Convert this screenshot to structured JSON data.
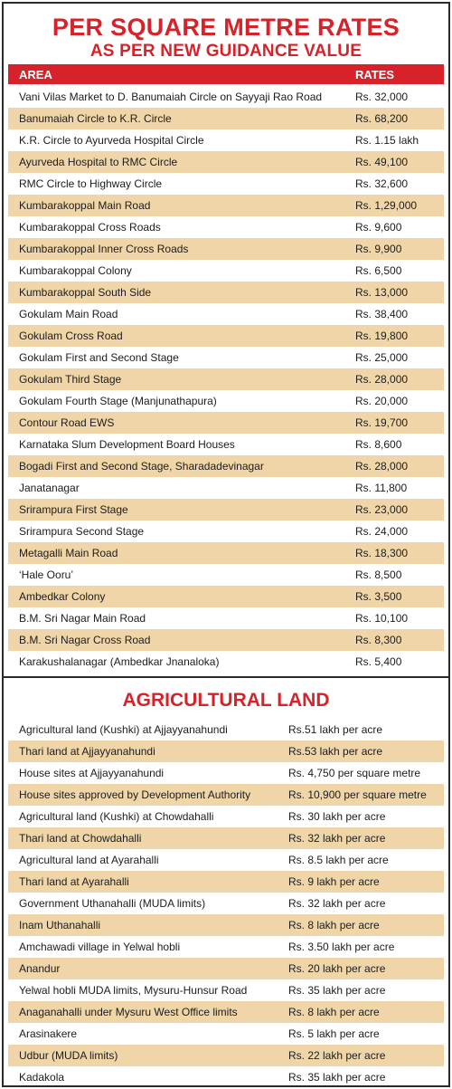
{
  "title": "PER SQUARE METRE RATES",
  "subtitle": "AS PER NEW GUIDANCE VALUE",
  "header": {
    "area": "AREA",
    "rates": "RATES"
  },
  "rates": [
    {
      "area": "Vani Vilas Market to D. Banumaiah Circle on Sayyaji Rao Road",
      "rate": "Rs. 32,000"
    },
    {
      "area": "Banumaiah Circle to K.R. Circle",
      "rate": "Rs. 68,200"
    },
    {
      "area": "K.R. Circle to Ayurveda Hospital Circle",
      "rate": "Rs. 1.15 lakh"
    },
    {
      "area": "Ayurveda Hospital to RMC Circle",
      "rate": "Rs. 49,100"
    },
    {
      "area": "RMC Circle to Highway Circle",
      "rate": "Rs. 32,600"
    },
    {
      "area": "Kumbarakoppal Main Road",
      "rate": "Rs. 1,29,000"
    },
    {
      "area": "Kumbarakoppal Cross Roads",
      "rate": "Rs. 9,600"
    },
    {
      "area": "Kumbarakoppal Inner Cross Roads",
      "rate": "Rs. 9,900"
    },
    {
      "area": "Kumbarakoppal Colony",
      "rate": "Rs. 6,500"
    },
    {
      "area": "Kumbarakoppal South Side",
      "rate": "Rs. 13,000"
    },
    {
      "area": "Gokulam Main Road",
      "rate": "Rs. 38,400"
    },
    {
      "area": "Gokulam Cross Road",
      "rate": "Rs. 19,800"
    },
    {
      "area": "Gokulam First and Second Stage",
      "rate": "Rs. 25,000"
    },
    {
      "area": "Gokulam Third Stage",
      "rate": "Rs. 28,000"
    },
    {
      "area": "Gokulam Fourth Stage (Manjunathapura)",
      "rate": "Rs. 20,000"
    },
    {
      "area": "Contour Road EWS",
      "rate": "Rs. 19,700"
    },
    {
      "area": "Karnataka Slum Development Board Houses",
      "rate": "Rs. 8,600"
    },
    {
      "area": "Bogadi First and Second Stage, Sharadadevinagar",
      "rate": "Rs. 28,000"
    },
    {
      "area": "Janatanagar",
      "rate": "Rs. 11,800"
    },
    {
      "area": "Srirampura First Stage",
      "rate": "Rs. 23,000"
    },
    {
      "area": "Srirampura Second Stage",
      "rate": "Rs. 24,000"
    },
    {
      "area": "Metagalli Main Road",
      "rate": "Rs. 18,300"
    },
    {
      "area": "‘Hale Ooru’",
      "rate": "Rs. 8,500"
    },
    {
      "area": "Ambedkar Colony",
      "rate": "Rs. 3,500"
    },
    {
      "area": "B.M. Sri Nagar Main Road",
      "rate": "Rs. 10,100"
    },
    {
      "area": "B.M. Sri Nagar Cross Road",
      "rate": "Rs. 8,300"
    },
    {
      "area": "Karakushalanagar (Ambedkar Jnanaloka)",
      "rate": "Rs. 5,400"
    }
  ],
  "agri_title": "AGRICULTURAL LAND",
  "agri": [
    {
      "area": "Agricultural land (Kushki) at Ajjayyanahundi",
      "rate": "Rs.51 lakh per acre"
    },
    {
      "area": "Thari land at Ajjayyanahundi",
      "rate": "Rs.53 lakh per acre"
    },
    {
      "area": "House sites at Ajjayyanahundi",
      "rate": "Rs. 4,750 per square metre"
    },
    {
      "area": "House sites approved by Development Authority",
      "rate": "Rs. 10,900 per square metre"
    },
    {
      "area": "Agricultural land (Kushki) at Chowdahalli",
      "rate": "Rs. 30 lakh per acre"
    },
    {
      "area": "Thari land at Chowdahalli",
      "rate": "Rs. 32 lakh per acre"
    },
    {
      "area": "Agricultural land at Ayarahalli",
      "rate": "Rs. 8.5 lakh per acre"
    },
    {
      "area": "Thari land at Ayarahalli",
      "rate": "Rs. 9 lakh per acre"
    },
    {
      "area": "Government Uthanahalli (MUDA limits)",
      "rate": "Rs. 32 lakh per acre"
    },
    {
      "area": "Inam Uthanahalli",
      "rate": "Rs. 8 lakh per acre"
    },
    {
      "area": "Amchawadi village in Yelwal hobli",
      "rate": "Rs. 3.50 lakh per acre"
    },
    {
      "area": "Anandur",
      "rate": "Rs. 20 lakh per acre"
    },
    {
      "area": "Yelwal hobli MUDA limits, Mysuru-Hunsur Road",
      "rate": "Rs. 35 lakh per acre"
    },
    {
      "area": "Anaganahalli under Mysuru West Office limits",
      "rate": "Rs. 8 lakh per acre"
    },
    {
      "area": "Arasinakere",
      "rate": "Rs. 5 lakh per acre"
    },
    {
      "area": "Udbur (MUDA limits)",
      "rate": "Rs. 22 lakh per acre"
    },
    {
      "area": "Kadakola",
      "rate": "Rs. 35 lakh per acre"
    }
  ]
}
